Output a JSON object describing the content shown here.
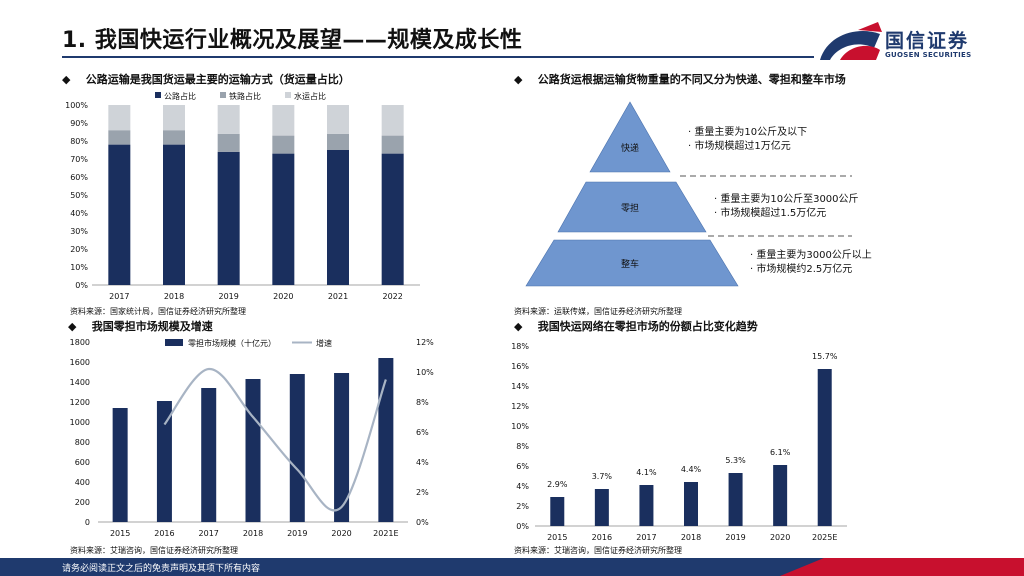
{
  "header": {
    "title": "1. 我国快运行业概况及展望——规模及成长性",
    "logo_text": "国信证券",
    "logo_sub": "GUOSEN SECURITIES"
  },
  "sections": {
    "s1_title": "公路运输是我国货运最主要的运输方式（货运量占比）",
    "s1_source": "资料来源：国家统计局，国信证券经济研究所整理",
    "s2_title": "公路货运根据运输货物重量的不同又分为快递、零担和整车市场",
    "s2_source": "资料来源：运联传媒，国信证券经济研究所整理",
    "s3_title": "我国零担市场规模及增速",
    "s3_source": "资料来源：艾瑞咨询，国信证券经济研究所整理",
    "s4_title": "我国快运网络在零担市场的份额占比变化趋势",
    "s4_source": "资料来源：艾瑞咨询，国信证券经济研究所整理"
  },
  "pyramid": {
    "levels": [
      {
        "label": "快递",
        "notes": [
          "· 重量主要为10公斤及以下",
          "· 市场规模超过1万亿元"
        ]
      },
      {
        "label": "零担",
        "notes": [
          "· 重量主要为10公斤至3000公斤",
          "· 市场规模超过1.5万亿元"
        ]
      },
      {
        "label": "整车",
        "notes": [
          "· 重量主要为3000公斤以上",
          "· 市场规模约2.5万亿元"
        ]
      }
    ]
  },
  "footer": {
    "text": "请务必阅读正文之后的免责声明及其项下所有内容"
  },
  "colors": {
    "navy": "#1a2f5e",
    "gray": "#9aa3ad",
    "light": "#cfd3d8",
    "line": "#a8b4c4"
  },
  "chart_data": [
    {
      "type": "bar",
      "stacked": true,
      "categories": [
        "2017",
        "2018",
        "2019",
        "2020",
        "2021",
        "2022"
      ],
      "series": [
        {
          "name": "公路占比",
          "values": [
            78,
            78,
            74,
            73,
            75,
            73
          ]
        },
        {
          "name": "铁路占比",
          "values": [
            8,
            8,
            10,
            10,
            9,
            10
          ]
        },
        {
          "name": "水运占比",
          "values": [
            14,
            14,
            16,
            17,
            16,
            17
          ]
        }
      ],
      "ylim": [
        0,
        100
      ],
      "yticks": [
        "0%",
        "10%",
        "20%",
        "30%",
        "40%",
        "50%",
        "60%",
        "70%",
        "80%",
        "90%",
        "100%"
      ],
      "legend": "top"
    },
    {
      "type": "bar",
      "categories": [
        "2015",
        "2016",
        "2017",
        "2018",
        "2019",
        "2020",
        "2021E"
      ],
      "series": [
        {
          "name": "零担市场规模（十亿元）",
          "values": [
            1140,
            1210,
            1340,
            1430,
            1480,
            1490,
            1640
          ]
        },
        {
          "name": "增速",
          "type": "line",
          "values": [
            null,
            6.5,
            10.2,
            7.0,
            3.5,
            1.0,
            9.5
          ]
        }
      ],
      "ylim": [
        0,
        1800
      ],
      "yticks": [
        "0",
        "200",
        "400",
        "600",
        "800",
        "1000",
        "1200",
        "1400",
        "1600",
        "1800"
      ],
      "y2lim": [
        0,
        12
      ],
      "y2ticks": [
        "0%",
        "2%",
        "4%",
        "6%",
        "8%",
        "10%",
        "12%"
      ],
      "legend": "top"
    },
    {
      "type": "bar",
      "categories": [
        "2015",
        "2016",
        "2017",
        "2018",
        "2019",
        "2020",
        "2025E"
      ],
      "values": [
        2.9,
        3.7,
        4.1,
        4.4,
        5.3,
        6.1,
        15.7
      ],
      "labels": [
        "2.9%",
        "3.7%",
        "4.1%",
        "4.4%",
        "5.3%",
        "6.1%",
        "15.7%"
      ],
      "ylim": [
        0,
        18
      ],
      "yticks": [
        "0%",
        "2%",
        "4%",
        "6%",
        "8%",
        "10%",
        "12%",
        "14%",
        "16%",
        "18%"
      ]
    }
  ]
}
